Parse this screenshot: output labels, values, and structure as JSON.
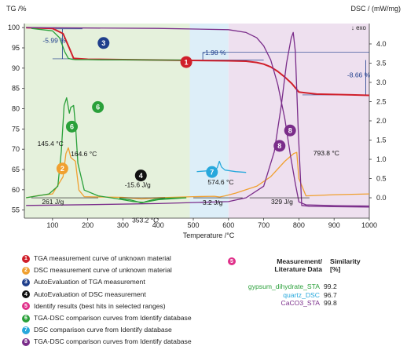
{
  "colors": {
    "tga": "#d01f2a",
    "dsc": "#f0a030",
    "auto_tga": "#1f3f8c",
    "auto_dsc": "#111111",
    "identify": "#e0308a",
    "tga_db": "#2aa03a",
    "dsc_db": "#27a8dc",
    "tga_dsc_db": "#7a2d8a",
    "bg_green": "#e5f1dc",
    "bg_blue": "#ddeef8",
    "bg_purple": "#eee0ef"
  },
  "chart_data": {
    "type": "line",
    "xlabel": "Temperature /°C",
    "ylabel_left": "TG /%",
    "ylabel_right": "DSC / (mW/mg)",
    "exo_label": "↓ exo",
    "xlim": [
      20,
      1000
    ],
    "ylim_left": [
      53,
      101
    ],
    "ylim_right": [
      -0.53,
      4.53
    ],
    "xticks": [
      100,
      200,
      300,
      400,
      500,
      600,
      700,
      800,
      900,
      1000
    ],
    "yticks_left": [
      55,
      60,
      65,
      70,
      75,
      80,
      85,
      90,
      95,
      100
    ],
    "yticks_right": [
      0.0,
      0.5,
      1.0,
      1.5,
      2.0,
      2.5,
      3.0,
      3.5,
      4.0
    ],
    "regions": [
      {
        "from": 20,
        "to": 490,
        "color": "bg_green"
      },
      {
        "from": 490,
        "to": 600,
        "color": "bg_blue"
      },
      {
        "from": 600,
        "to": 1000,
        "color": "bg_purple"
      }
    ],
    "series": [
      {
        "name": "TGA",
        "axis": "left",
        "color": "tga",
        "x": [
          25,
          100,
          130,
          150,
          160,
          200,
          300,
          400,
          500,
          600,
          650,
          680,
          700,
          720,
          740,
          760,
          780,
          800,
          850,
          900,
          950,
          1000
        ],
        "y": [
          100,
          99.8,
          98.5,
          94.5,
          92.4,
          92.2,
          92.1,
          92.0,
          91.9,
          91.8,
          91.7,
          91.4,
          91.0,
          90.3,
          89.2,
          87.8,
          86.2,
          84.1,
          83.6,
          83.5,
          83.4,
          83.3
        ]
      },
      {
        "name": "DSC",
        "axis": "right",
        "color": "dsc",
        "x": [
          25,
          60,
          100,
          130,
          138,
          145,
          152,
          158,
          165,
          175,
          190,
          230,
          300,
          353,
          400,
          500,
          560,
          575,
          590,
          620,
          680,
          720,
          760,
          785,
          794,
          800,
          820,
          900,
          1000
        ],
        "y": [
          0.0,
          0.06,
          0.1,
          0.55,
          1.15,
          1.3,
          1.05,
          1.0,
          0.95,
          0.2,
          0.03,
          0.02,
          0.01,
          -0.03,
          0.0,
          0.03,
          0.04,
          0.02,
          0.05,
          0.12,
          0.3,
          0.55,
          0.95,
          1.15,
          1.18,
          0.5,
          0.05,
          0.08,
          0.1
        ]
      },
      {
        "name": "TGA-DB",
        "axis": "left",
        "color": "tga_db",
        "x": [
          40,
          100,
          120,
          135,
          145,
          155,
          165,
          200,
          230,
          300,
          400,
          480
        ],
        "y": [
          99.8,
          99.2,
          97.5,
          94.0,
          92.4,
          92.2,
          92.1,
          92.1,
          92.05,
          92.05,
          92.0,
          92.0
        ]
      },
      {
        "name": "DSC-DB",
        "axis": "right",
        "color": "tga_db",
        "x": [
          25,
          90,
          115,
          125,
          133,
          140,
          148,
          152,
          160,
          166,
          172,
          190,
          230,
          280,
          330,
          360,
          400,
          480
        ],
        "y": [
          0.0,
          0.1,
          0.3,
          1.2,
          2.4,
          2.6,
          2.2,
          2.35,
          2.4,
          1.8,
          0.9,
          0.2,
          0.05,
          -0.02,
          -0.1,
          -0.12,
          -0.05,
          0.0
        ]
      },
      {
        "name": "DSC-small",
        "axis": "right",
        "color": "tga_db",
        "x": [
          290,
          320,
          340,
          353,
          365,
          390,
          420,
          480
        ],
        "y": [
          -0.02,
          -0.05,
          -0.1,
          -0.14,
          -0.1,
          -0.04,
          -0.01,
          0.0
        ]
      },
      {
        "name": "quartz_DSC",
        "axis": "right",
        "color": "dsc_db",
        "x": [
          510,
          540,
          560,
          568,
          574,
          580,
          590,
          620,
          650
        ],
        "y": [
          0.68,
          0.7,
          0.72,
          0.78,
          0.95,
          0.8,
          0.72,
          0.68,
          0.66
        ]
      },
      {
        "name": "CaCO3_TGA",
        "axis": "left",
        "color": "tga_dsc_db",
        "x": [
          25,
          200,
          400,
          600,
          650,
          680,
          700,
          720,
          740,
          760,
          775,
          790,
          800,
          820,
          900,
          1000
        ],
        "y": [
          100,
          99.9,
          99.8,
          99.5,
          98.8,
          97.5,
          95.5,
          92.0,
          86.0,
          77.5,
          69.0,
          61.5,
          57.0,
          56.3,
          56.1,
          56.0
        ]
      },
      {
        "name": "CaCO3_DSC",
        "axis": "right",
        "color": "tga_dsc_db",
        "x": [
          25,
          200,
          400,
          600,
          650,
          700,
          730,
          750,
          765,
          778,
          784,
          790,
          798,
          808,
          830,
          900,
          1000
        ],
        "y": [
          -0.2,
          -0.18,
          -0.15,
          -0.1,
          0.0,
          0.3,
          1.2,
          2.4,
          3.5,
          4.15,
          4.3,
          3.8,
          1.8,
          -0.2,
          -0.22,
          -0.23,
          -0.24
        ]
      }
    ],
    "annotations": [
      {
        "text": "-5.99 %",
        "x": 105,
        "y": 96.3,
        "axis": "left",
        "color": "auto_tga"
      },
      {
        "text": "-1.98 %",
        "x": 560,
        "y": 93.3,
        "axis": "left",
        "color": "auto_tga"
      },
      {
        "text": "-8.66 %",
        "x": 970,
        "y": 87.7,
        "axis": "left",
        "color": "auto_tga"
      },
      {
        "text": "145.4 °C",
        "x": 94,
        "y": 1.35,
        "axis": "right",
        "color": "auto_dsc"
      },
      {
        "text": "164.6 °C",
        "x": 189,
        "y": 1.08,
        "axis": "right",
        "color": "auto_dsc"
      },
      {
        "text": "-15.6 J/g",
        "x": 342,
        "y": 0.28,
        "axis": "right",
        "color": "auto_dsc"
      },
      {
        "text": "261 J/g",
        "x": 101,
        "y": -0.16,
        "axis": "right",
        "color": "auto_dsc"
      },
      {
        "text": "353.2 °C",
        "x": 363,
        "y": -0.64,
        "axis": "right",
        "color": "auto_dsc"
      },
      {
        "text": "574.6 °C",
        "x": 578,
        "y": 0.35,
        "axis": "right",
        "color": "auto_dsc"
      },
      {
        "text": "3.2 J/g",
        "x": 555,
        "y": -0.18,
        "axis": "right",
        "color": "auto_dsc"
      },
      {
        "text": "329 J/g",
        "x": 752,
        "y": -0.16,
        "axis": "right",
        "color": "auto_dsc"
      },
      {
        "text": "793.8 °C",
        "x": 878,
        "y": 1.1,
        "axis": "right",
        "color": "auto_dsc"
      }
    ],
    "markers": [
      {
        "label": "1",
        "x": 480,
        "y": 91.5,
        "axis": "left",
        "color": "tga"
      },
      {
        "label": "2",
        "x": 128,
        "y": 0.76,
        "axis": "right",
        "color": "dsc"
      },
      {
        "label": "3",
        "x": 245,
        "y": 96.2,
        "axis": "left",
        "color": "auto_tga"
      },
      {
        "label": "4",
        "x": 351,
        "y": 0.58,
        "axis": "right",
        "color": "auto_dsc"
      },
      {
        "label": "6",
        "x": 229,
        "y": 80.4,
        "axis": "left",
        "color": "tga_db"
      },
      {
        "label": "6",
        "x": 155,
        "y": 1.85,
        "axis": "right",
        "color": "tga_db"
      },
      {
        "label": "7",
        "x": 553,
        "y": 0.67,
        "axis": "right",
        "color": "dsc_db"
      },
      {
        "label": "8",
        "x": 775,
        "y": 1.75,
        "axis": "right",
        "color": "tga_dsc_db"
      },
      {
        "label": "8",
        "x": 745,
        "y": 1.35,
        "axis": "right",
        "color": "tga_dsc_db"
      }
    ]
  },
  "legend": [
    {
      "num": "1",
      "color": "tga",
      "text": "TGA measurement curve of unknown material"
    },
    {
      "num": "2",
      "color": "dsc",
      "text": "DSC measurement curve of unknown material"
    },
    {
      "num": "3",
      "color": "auto_tga",
      "text": "AutoEvaluation of TGA measurement"
    },
    {
      "num": "4",
      "color": "auto_dsc",
      "text": "AutoEvaluation of DSC measurement"
    },
    {
      "num": "5",
      "color": "identify",
      "text": "Identify results (best hits in selected ranges)"
    },
    {
      "num": "6",
      "color": "tga_db",
      "text": "TGA-DSC comparison curves from Identify database"
    },
    {
      "num": "7",
      "color": "dsc_db",
      "text": "DSC comparison curve from Identify database"
    },
    {
      "num": "8",
      "color": "tga_dsc_db",
      "text": "TGA-DSC comparison curves from Identify database"
    }
  ],
  "similarity": {
    "badge": "5",
    "head_left": "Measurement/\nLiterature Data",
    "head_right": "Similarity\n[%]",
    "rows": [
      {
        "name": "gypsum_dihydrate_STA",
        "value": "99.2",
        "color": "tga_db"
      },
      {
        "name": "quartz_DSC",
        "value": "96.7",
        "color": "dsc_db"
      },
      {
        "name": "CaCO3_STA",
        "value": "99.8",
        "color": "tga_dsc_db"
      }
    ]
  }
}
